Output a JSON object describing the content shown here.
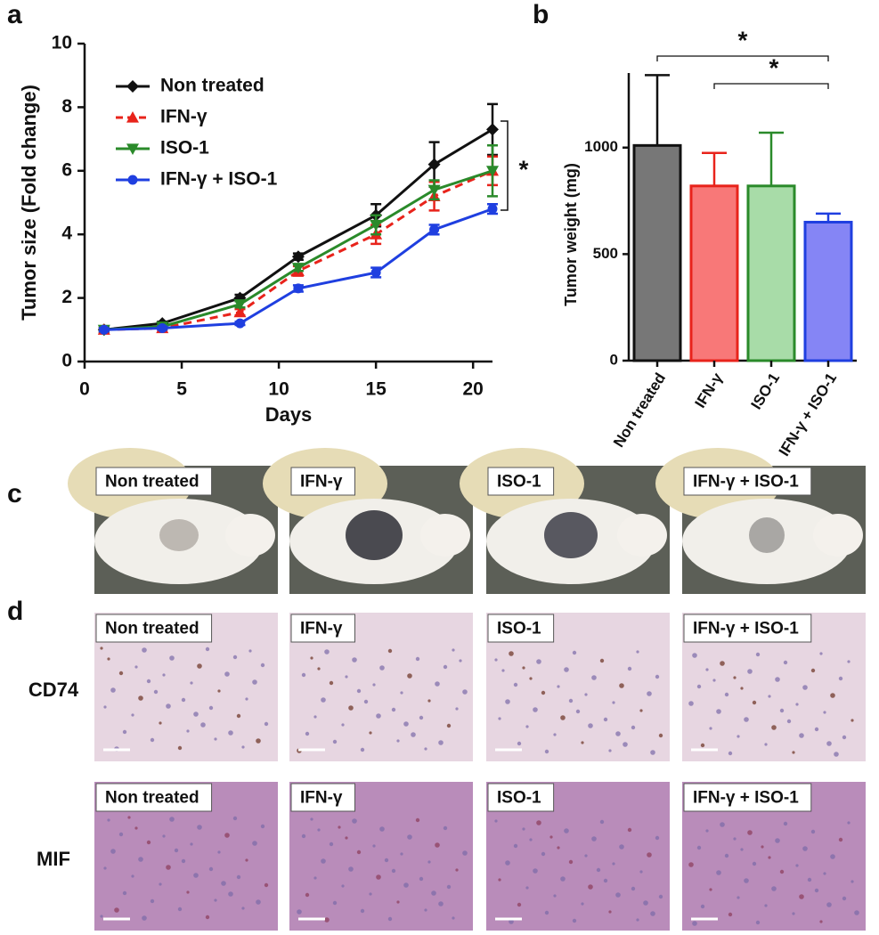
{
  "chart_data": [
    {
      "type": "line",
      "panel": "a",
      "x_label": "Days",
      "y_label": "Tumor size (Fold change)",
      "x": [
        1,
        4,
        8,
        11,
        15,
        18,
        21
      ],
      "xlim": [
        0,
        21
      ],
      "xticks": [
        0,
        5,
        10,
        15,
        20
      ],
      "ylim": [
        0,
        10
      ],
      "yticks": [
        0,
        2,
        4,
        6,
        8,
        10
      ],
      "series": [
        {
          "name": "Non treated",
          "color": "#111111",
          "marker": "diamond",
          "dash": false,
          "values": [
            1.0,
            1.2,
            2.0,
            3.3,
            4.6,
            6.2,
            7.3
          ],
          "errors": [
            0.1,
            0.05,
            0.1,
            0.1,
            0.35,
            0.7,
            0.8
          ]
        },
        {
          "name": "IFN-γ",
          "color": "#e8231b",
          "marker": "triangle",
          "dash": true,
          "values": [
            1.0,
            1.05,
            1.55,
            2.85,
            4.0,
            5.2,
            6.0
          ],
          "errors": [
            0.05,
            0.05,
            0.1,
            0.15,
            0.3,
            0.45,
            0.45
          ]
        },
        {
          "name": "ISO-1",
          "color": "#2a8a2a",
          "marker": "triangle-down",
          "dash": false,
          "values": [
            1.0,
            1.1,
            1.8,
            2.95,
            4.3,
            5.4,
            6.0
          ],
          "errors": [
            0.05,
            0.05,
            0.1,
            0.1,
            0.3,
            0.3,
            0.8
          ]
        },
        {
          "name": "IFN-γ + ISO-1",
          "color": "#1f3fe0",
          "marker": "circle",
          "dash": false,
          "values": [
            1.0,
            1.05,
            1.2,
            2.3,
            2.8,
            4.15,
            4.8
          ],
          "errors": [
            0.05,
            0.05,
            0.05,
            0.1,
            0.15,
            0.15,
            0.15
          ]
        }
      ],
      "significance": [
        {
          "label": "*"
        }
      ]
    },
    {
      "type": "bar",
      "panel": "b",
      "y_label": "Tumor weight (mg)",
      "categories": [
        "Non treated",
        "IFN-γ",
        "ISO-1",
        "IFN-γ + ISO-1"
      ],
      "values": [
        1010,
        820,
        820,
        650
      ],
      "errors": [
        330,
        155,
        250,
        40
      ],
      "colors": [
        "#777777",
        "#f87878",
        "#a8dca8",
        "#8585f5"
      ],
      "edge_colors": [
        "#111111",
        "#e8231b",
        "#2a8a2a",
        "#1f3fe0"
      ],
      "ylim": [
        0,
        1350
      ],
      "yticks": [
        0,
        500,
        1000
      ],
      "significance": [
        {
          "from": 0,
          "to": 3,
          "label": "*"
        },
        {
          "from": 1,
          "to": 3,
          "label": "*"
        }
      ]
    }
  ],
  "photos": {
    "panel": "c",
    "labels": [
      "Non treated",
      "IFN-γ",
      "ISO-1",
      "IFN-γ + ISO-1"
    ]
  },
  "histology": {
    "panel": "d",
    "rows": [
      {
        "label": "CD74",
        "tiles": [
          "Non treated",
          "IFN-γ",
          "ISO-1",
          "IFN-γ + ISO-1"
        ]
      },
      {
        "label": "MIF",
        "tiles": [
          "Non treated",
          "IFN-γ",
          "ISO-1",
          "IFN-γ + ISO-1"
        ]
      }
    ]
  }
}
